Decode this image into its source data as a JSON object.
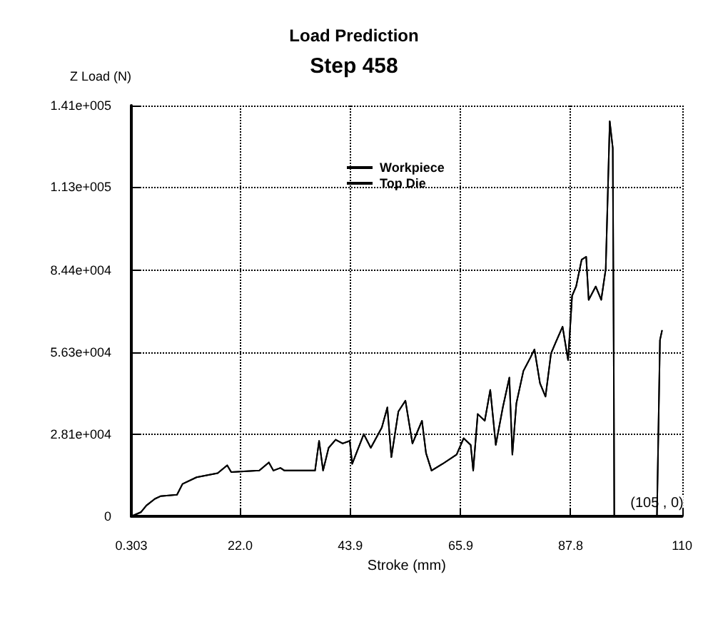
{
  "chart_data": {
    "type": "line",
    "title": "Load Prediction",
    "subtitle": "Step 458",
    "xlabel": "Stroke (mm)",
    "ylabel": "Z Load (N)",
    "x": [
      0.303,
      2.2,
      3.3,
      5.0,
      6.1,
      9.4,
      10.5,
      13.3,
      17.5,
      19.4,
      20.2,
      25.8,
      27.7,
      28.6,
      30.0,
      30.8,
      36.9,
      37.7,
      38.5,
      39.6,
      41.0,
      42.4,
      43.8,
      44.3,
      46.6,
      48.0,
      50.2,
      51.3,
      52.1,
      53.5,
      54.9,
      56.3,
      58.2,
      59.0,
      60.1,
      62.3,
      65.1,
      66.5,
      67.9,
      68.4,
      69.3,
      70.7,
      71.8,
      72.9,
      74.3,
      75.6,
      76.2,
      77.0,
      78.4,
      79.8,
      80.6,
      81.7,
      82.8,
      83.9,
      84.8,
      86.2,
      87.3,
      88.1,
      88.9,
      90.0,
      90.9,
      91.4,
      92.8,
      93.9,
      94.8,
      95.6,
      96.2,
      96.4,
      96.5,
      105,
      105.6,
      106
    ],
    "series": [
      {
        "name": "Workpiece",
        "color": "#000000",
        "values": [
          0,
          1400,
          3700,
          6000,
          6900,
          7400,
          11100,
          13400,
          14800,
          17500,
          15200,
          15700,
          18500,
          15700,
          16600,
          15700,
          15700,
          25900,
          15700,
          23500,
          26300,
          25000,
          25900,
          18000,
          28200,
          23500,
          30500,
          37400,
          20300,
          36000,
          39700,
          25000,
          32800,
          21700,
          15700,
          18000,
          21200,
          26800,
          24500,
          15700,
          35100,
          32800,
          43400,
          24500,
          37400,
          47600,
          21200,
          38800,
          49900,
          54500,
          57300,
          45700,
          41100,
          55900,
          59600,
          65100,
          53600,
          75700,
          78900,
          88100,
          89100,
          74300,
          78900,
          74300,
          84900,
          135600,
          126400,
          51300,
          0,
          0,
          60500,
          63700
        ]
      },
      {
        "name": "Top Die",
        "color": "#000000",
        "values": [
          0,
          1400,
          3700,
          6000,
          6900,
          7400,
          11100,
          13400,
          14800,
          17500,
          15200,
          15700,
          18500,
          15700,
          16600,
          15700,
          15700,
          25900,
          15700,
          23500,
          26300,
          25000,
          25900,
          18000,
          28200,
          23500,
          30500,
          37400,
          20300,
          36000,
          39700,
          25000,
          32800,
          21700,
          15700,
          18000,
          21200,
          26800,
          24500,
          15700,
          35100,
          32800,
          43400,
          24500,
          37400,
          47600,
          21200,
          38800,
          49900,
          54500,
          57300,
          45700,
          41100,
          55900,
          59600,
          65100,
          53600,
          75700,
          78900,
          88100,
          89100,
          74300,
          78900,
          74300,
          84900,
          135600,
          126400,
          51300,
          0,
          0,
          60500,
          63700
        ]
      }
    ],
    "xlim": [
      0.303,
      110
    ],
    "xticks": [
      {
        "value": 0.303,
        "label": "0.303"
      },
      {
        "value": 22.0,
        "label": "22.0"
      },
      {
        "value": 43.9,
        "label": "43.9"
      },
      {
        "value": 65.9,
        "label": "65.9"
      },
      {
        "value": 87.8,
        "label": "87.8"
      },
      110
    ],
    "ylim": [
      0,
      141000
    ],
    "yticks": [
      0,
      {
        "value": 28100,
        "label": "2.81e+004"
      },
      {
        "value": 56300,
        "label": "5.63e+004"
      },
      {
        "value": 84400,
        "label": "8.44e+004"
      },
      {
        "value": 113000,
        "label": "1.13e+005"
      },
      {
        "value": 141000,
        "label": "1.41e+005"
      }
    ],
    "grid": true,
    "legend": "top",
    "marker": "none",
    "line_style": "solid",
    "annotations": [
      {
        "text": "(105 , 0)",
        "x": 105,
        "y": 0
      }
    ]
  }
}
